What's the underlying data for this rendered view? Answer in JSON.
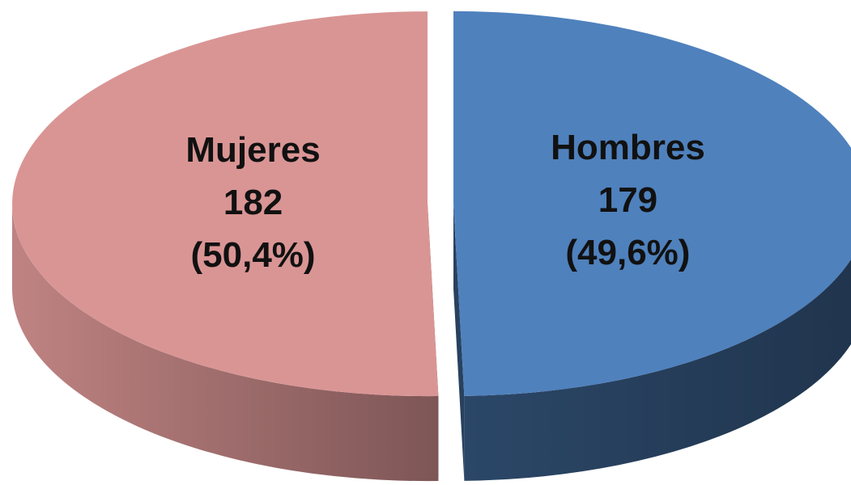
{
  "chart_data": {
    "type": "pie3d",
    "categories": [
      "Mujeres",
      "Hombres"
    ],
    "values": [
      182,
      179
    ],
    "percent_labels": [
      "(50,4%)",
      "(49,6%)"
    ],
    "colors": [
      "#d99594",
      "#4f81bd"
    ]
  }
}
